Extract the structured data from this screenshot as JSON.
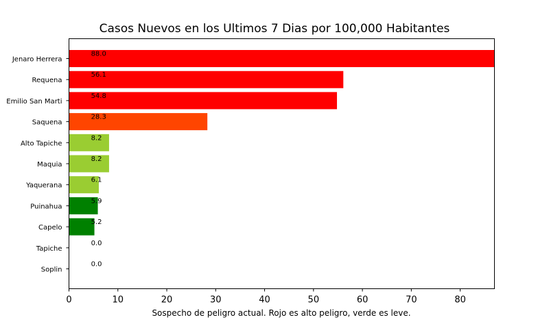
{
  "chart_data": {
    "type": "bar",
    "orientation": "horizontal",
    "title": "Casos Nuevos en los Ultimos 7 Dias por 100,000 Habitantes",
    "xlabel": "Sospecho de peligro actual. Rojo es alto peligro, verde es leve.",
    "ylabel": "",
    "xlim": [
      0,
      87
    ],
    "xticks": [
      0,
      10,
      20,
      30,
      40,
      50,
      60,
      70,
      80
    ],
    "grid": false,
    "categories": [
      "Jenaro Herrera",
      "Requena",
      "Emilio San Marti",
      "Saquena",
      "Alto Tapiche",
      "Maquia",
      "Yaquerana",
      "Puinahua",
      "Capelo",
      "Tapiche",
      "Soplin"
    ],
    "values": [
      88.0,
      56.1,
      54.8,
      28.3,
      8.2,
      8.2,
      6.1,
      5.9,
      5.2,
      0.0,
      0.0
    ],
    "value_labels": [
      "88.0",
      "56.1",
      "54.8",
      "28.3",
      "8.2",
      "8.2",
      "6.1",
      "5.9",
      "5.2",
      "0.0",
      "0.0"
    ],
    "colors": [
      "#ff0000",
      "#ff0000",
      "#ff0000",
      "#ff4500",
      "#9acd32",
      "#9acd32",
      "#9acd32",
      "#008000",
      "#008000",
      "#008000",
      "#008000"
    ]
  }
}
